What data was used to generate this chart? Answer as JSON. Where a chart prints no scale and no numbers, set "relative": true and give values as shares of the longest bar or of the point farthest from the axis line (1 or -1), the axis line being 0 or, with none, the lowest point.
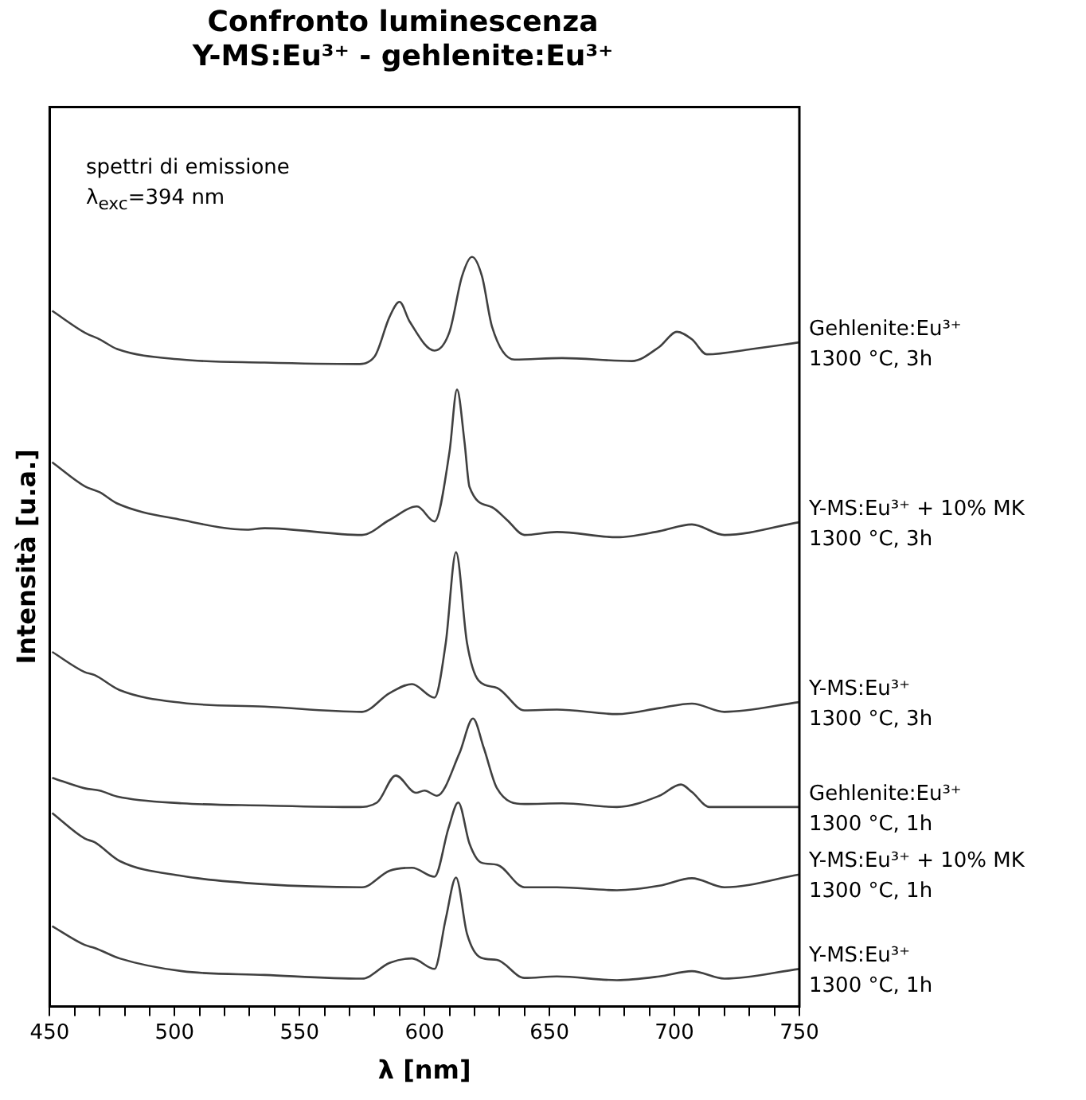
{
  "chart_data": {
    "type": "line",
    "title": "Confronto luminescenza\nY-MS:Eu³⁺ - gehlenite:Eu³⁺",
    "xlabel": "λ [nm]",
    "ylabel": "Intensità [u.a.]",
    "relative": true,
    "legend": false,
    "xlim": [
      450,
      750
    ],
    "xticks": [
      450,
      {
        "value": 460,
        "label": null
      },
      {
        "value": 470,
        "label": null
      },
      {
        "value": 480,
        "label": null
      },
      {
        "value": 490,
        "label": null
      },
      500,
      {
        "value": 510,
        "label": null
      },
      {
        "value": 520,
        "label": null
      },
      {
        "value": 530,
        "label": null
      },
      {
        "value": 540,
        "label": null
      },
      550,
      {
        "value": 560,
        "label": null
      },
      {
        "value": 570,
        "label": null
      },
      {
        "value": 580,
        "label": null
      },
      {
        "value": 590,
        "label": null
      },
      600,
      {
        "value": 610,
        "label": null
      },
      {
        "value": 620,
        "label": null
      },
      {
        "value": 630,
        "label": null
      },
      {
        "value": 640,
        "label": null
      },
      650,
      {
        "value": 660,
        "label": null
      },
      {
        "value": 670,
        "label": null
      },
      {
        "value": 680,
        "label": null
      },
      {
        "value": 690,
        "label": null
      },
      700,
      {
        "value": 710,
        "label": null
      },
      {
        "value": 720,
        "label": null
      },
      {
        "value": 730,
        "label": null
      },
      {
        "value": 740,
        "label": null
      },
      750
    ],
    "annotations": [
      "spettri di emissione",
      "λ$_{exc}$=394 nm"
    ],
    "series": [
      {
        "name": "Gehlenite:Eu³⁺\n1300 °C, 3h",
        "color": "#404040",
        "x": [
          451,
          464,
          470,
          477,
          503,
          536,
          573,
          580,
          586,
          590,
          594,
          604,
          610,
          615,
          619,
          623,
          627,
          636,
          655,
          683,
          694,
          701,
          707,
          713,
          731,
          750
        ],
        "values": [
          0.928,
          0.899,
          0.89,
          0.877,
          0.863,
          0.859,
          0.857,
          0.867,
          0.92,
          0.94,
          0.914,
          0.875,
          0.9,
          0.974,
          1,
          0.974,
          0.907,
          0.863,
          0.865,
          0.861,
          0.88,
          0.9,
          0.89,
          0.87,
          0.877,
          0.886
        ]
      },
      {
        "name": "Y-MS:Eu³⁺ + 10% MK\n1300 °C, 3h",
        "color": "#404040",
        "x": [
          451,
          464,
          470,
          477,
          503,
          529,
          536,
          575,
          586,
          597,
          604,
          610,
          613,
          616,
          618,
          627,
          633,
          640,
          653,
          677,
          694,
          707,
          720,
          750
        ],
        "values": [
          0.726,
          0.694,
          0.686,
          0.671,
          0.649,
          0.636,
          0.638,
          0.629,
          0.649,
          0.667,
          0.647,
          0.74,
          0.823,
          0.753,
          0.693,
          0.666,
          0.649,
          0.629,
          0.633,
          0.626,
          0.634,
          0.643,
          0.629,
          0.646
        ]
      },
      {
        "name": "Y-MS:Eu³⁺\n1300 °C, 3h",
        "color": "#404040",
        "x": [
          451,
          464,
          468,
          478,
          503,
          536,
          575,
          586,
          595,
          604,
          608.5,
          612.6,
          617,
          621.6,
          629,
          640,
          653,
          677,
          694,
          707,
          720,
          750
        ],
        "values": [
          0.473,
          0.446,
          0.442,
          0.422,
          0.405,
          0.4,
          0.393,
          0.418,
          0.43,
          0.412,
          0.485,
          0.606,
          0.485,
          0.435,
          0.425,
          0.395,
          0.396,
          0.39,
          0.398,
          0.404,
          0.393,
          0.406
        ]
      },
      {
        "name": "Gehlenite:Eu³⁺\n1300 °C, 1h",
        "color": "#404040",
        "x": [
          451,
          464,
          470,
          477,
          503,
          536,
          573,
          581,
          588.5,
          596.6,
          600,
          605,
          614,
          619.4,
          623.7,
          629,
          640,
          655,
          677,
          694,
          702.6,
          707,
          714,
          750
        ],
        "values": [
          0.305,
          0.291,
          0.288,
          0.28,
          0.271,
          0.268,
          0.266,
          0.272,
          0.308,
          0.285,
          0.288,
          0.281,
          0.338,
          0.384,
          0.345,
          0.291,
          0.27,
          0.271,
          0.266,
          0.281,
          0.296,
          0.286,
          0.266,
          0.266
        ]
      },
      {
        "name": "Y-MS:Eu³⁺ + 10% MK\n1300 °C, 1h",
        "color": "#404040",
        "x": [
          451,
          464,
          468,
          478,
          503,
          536,
          575,
          586,
          595,
          604,
          609.6,
          613.5,
          618,
          622.6,
          629,
          640,
          653,
          677,
          694,
          707,
          720,
          750
        ],
        "values": [
          0.258,
          0.224,
          0.219,
          0.194,
          0.174,
          0.163,
          0.159,
          0.181,
          0.185,
          0.173,
          0.238,
          0.272,
          0.217,
          0.192,
          0.189,
          0.159,
          0.159,
          0.155,
          0.161,
          0.171,
          0.159,
          0.176
        ]
      },
      {
        "name": "Y-MS:Eu³⁺\n1300 °C, 1h",
        "color": "#404040",
        "x": [
          451,
          464,
          468,
          478,
          503,
          536,
          575,
          586,
          595,
          604,
          608.5,
          612.6,
          617,
          622.6,
          629,
          640,
          653,
          677,
          694,
          707,
          720,
          750
        ],
        "values": [
          0.107,
          0.082,
          0.078,
          0.064,
          0.047,
          0.042,
          0.037,
          0.058,
          0.064,
          0.05,
          0.117,
          0.172,
          0.097,
          0.065,
          0.062,
          0.038,
          0.04,
          0.035,
          0.04,
          0.047,
          0.037,
          0.05
        ]
      }
    ]
  }
}
